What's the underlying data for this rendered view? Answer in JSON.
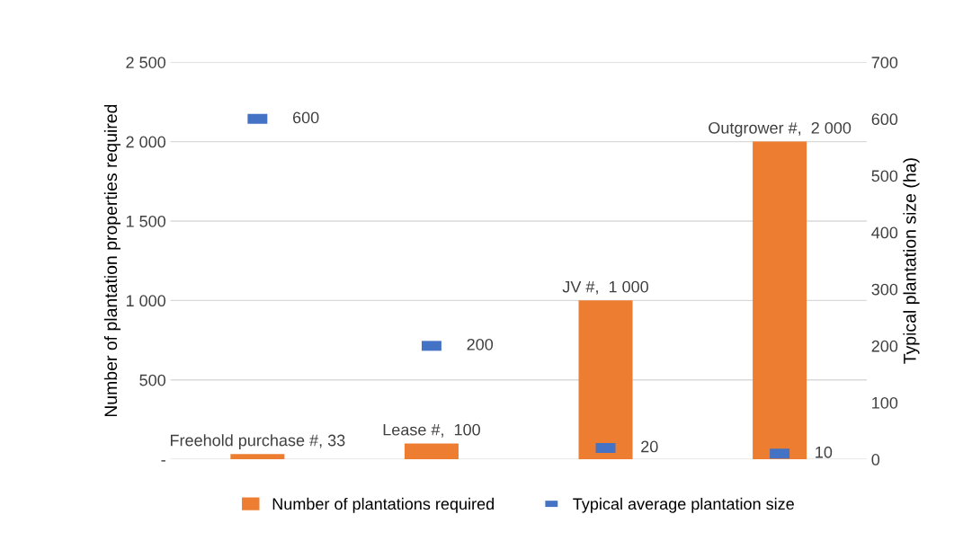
{
  "chart_data": {
    "type": "bar",
    "categories": [
      null,
      null,
      null,
      null
    ],
    "ylabel": "Number of plantation properties required",
    "y2label": "Typical plantation size (ha)",
    "series": [
      {
        "name": "Number of plantations required",
        "color": "#ed7d31",
        "values": [
          33,
          100,
          1000,
          2000
        ],
        "value_labels": [
          "Freehold purchase #, 33",
          "Lease #,  100",
          "JV #,  1 000",
          "Outgrower #,  2 000"
        ]
      },
      {
        "name": "Typical average plantation size",
        "type": "scatter",
        "axis": "y2",
        "marker": "square",
        "color": "#4472c4",
        "values": [
          600,
          200,
          20,
          10
        ],
        "value_labels": [
          "600",
          "200",
          "20",
          "10"
        ]
      }
    ],
    "ylim": [
      0,
      2500
    ],
    "yticks": [
      {
        "value": 0,
        "label": "-"
      },
      {
        "value": 500,
        "label": "500"
      },
      {
        "value": 1000,
        "label": "1 000"
      },
      {
        "value": 1500,
        "label": "1 500"
      },
      {
        "value": 2000,
        "label": "2 000"
      },
      {
        "value": 2500,
        "label": "2 500"
      }
    ],
    "y2lim": [
      0,
      700
    ],
    "y2ticks": [
      0,
      100,
      200,
      300,
      400,
      500,
      600,
      700
    ],
    "grid": "y",
    "legend": "bottom"
  }
}
